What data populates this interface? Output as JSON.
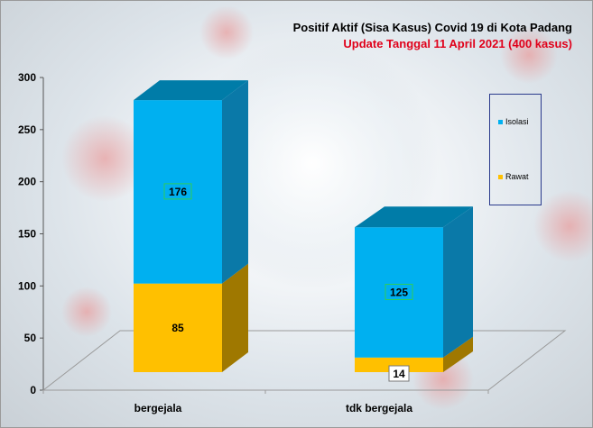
{
  "title": "Positif Aktif  (Sisa Kasus) Covid 19 di Kota Padang",
  "subtitle": "Update Tanggal 11 April 2021  (400 kasus)",
  "colors": {
    "isolasi_front": "#00b0f0",
    "isolasi_side": "#0a79a8",
    "isolasi_top": "#007ca8",
    "rawat_front": "#ffc000",
    "rawat_side": "#9f7800",
    "rawat_top": "#c79600",
    "title_sub": "#e0001a",
    "label_box_border": "#2ecc5a"
  },
  "legend": {
    "items": [
      {
        "label": "Isolasi",
        "color": "#00b0f0"
      },
      {
        "label": "Rawat",
        "color": "#ffc000"
      }
    ],
    "position": "right"
  },
  "chart_data": {
    "type": "bar",
    "stacked": true,
    "three_d": true,
    "categories": [
      "bergejala",
      "tdk bergejala"
    ],
    "series": [
      {
        "name": "Rawat",
        "values": [
          85,
          14
        ]
      },
      {
        "name": "Isolasi",
        "values": [
          176,
          125
        ]
      }
    ],
    "data_labels": {
      "Rawat": [
        "85",
        "14"
      ],
      "Isolasi": [
        "176",
        "125"
      ]
    },
    "ylim": [
      0,
      300
    ],
    "yticks": [
      0,
      50,
      100,
      150,
      200,
      250,
      300
    ],
    "grid": false
  }
}
